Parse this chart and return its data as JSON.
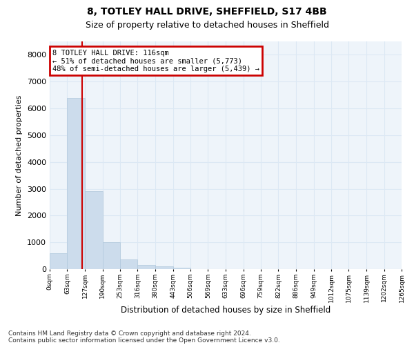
{
  "title1": "8, TOTLEY HALL DRIVE, SHEFFIELD, S17 4BB",
  "title2": "Size of property relative to detached houses in Sheffield",
  "xlabel": "Distribution of detached houses by size in Sheffield",
  "ylabel": "Number of detached properties",
  "bar_color": "#ccdcec",
  "bar_edge_color": "#b0c8dc",
  "grid_color": "#dce8f4",
  "bg_color": "#eef4fa",
  "property_line_x": 116,
  "bin_width": 63,
  "bin_starts": [
    0,
    63,
    127,
    190,
    253,
    316,
    380,
    443,
    506,
    569,
    633,
    696,
    759,
    822,
    886,
    949,
    1012,
    1075,
    1139,
    1202
  ],
  "bar_heights": [
    580,
    6400,
    2900,
    1000,
    350,
    160,
    100,
    60,
    10,
    5,
    3,
    2,
    1,
    1,
    0,
    0,
    0,
    0,
    0,
    0
  ],
  "ylim": [
    0,
    8500
  ],
  "yticks": [
    0,
    1000,
    2000,
    3000,
    4000,
    5000,
    6000,
    7000,
    8000
  ],
  "xlim_max": 1265,
  "annotation_line1": "8 TOTLEY HALL DRIVE: 116sqm",
  "annotation_line2": "← 51% of detached houses are smaller (5,773)",
  "annotation_line3": "48% of semi-detached houses are larger (5,439) →",
  "annotation_box_color": "#cc0000",
  "footnote1": "Contains HM Land Registry data © Crown copyright and database right 2024.",
  "footnote2": "Contains public sector information licensed under the Open Government Licence v3.0.",
  "title1_fontsize": 10,
  "title2_fontsize": 9,
  "ylabel_fontsize": 8,
  "xlabel_fontsize": 8.5,
  "ytick_fontsize": 8,
  "xtick_fontsize": 6.5,
  "annot_fontsize": 7.5,
  "footnote_fontsize": 6.5
}
